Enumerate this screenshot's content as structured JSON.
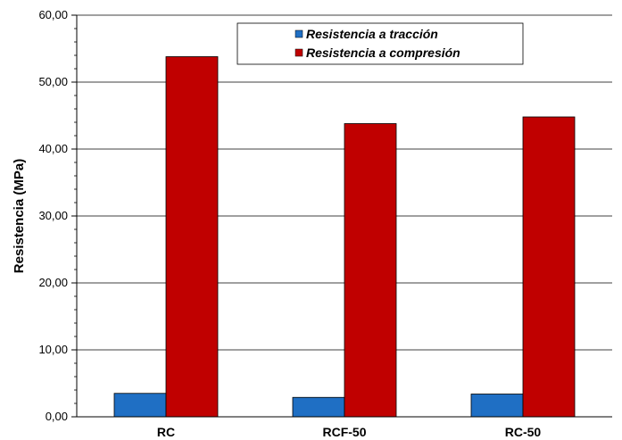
{
  "chart_data": {
    "type": "bar",
    "categories": [
      "RC",
      "RCF-50",
      "RC-50"
    ],
    "series": [
      {
        "name": "Resistencia a tracción",
        "values": [
          3.5,
          2.9,
          3.4
        ],
        "color": "#1f6fc4"
      },
      {
        "name": "Resistencia a compresión",
        "values": [
          53.8,
          43.8,
          44.8
        ],
        "color": "#c00000"
      }
    ],
    "ylabel": "Resistencia (MPa)",
    "xlabel": "",
    "ylim": [
      0,
      60
    ],
    "yticks": [
      "0,00",
      "10,00",
      "20,00",
      "30,00",
      "40,00",
      "50,00",
      "60,00"
    ],
    "grid": true,
    "legend_position": "top-right"
  }
}
